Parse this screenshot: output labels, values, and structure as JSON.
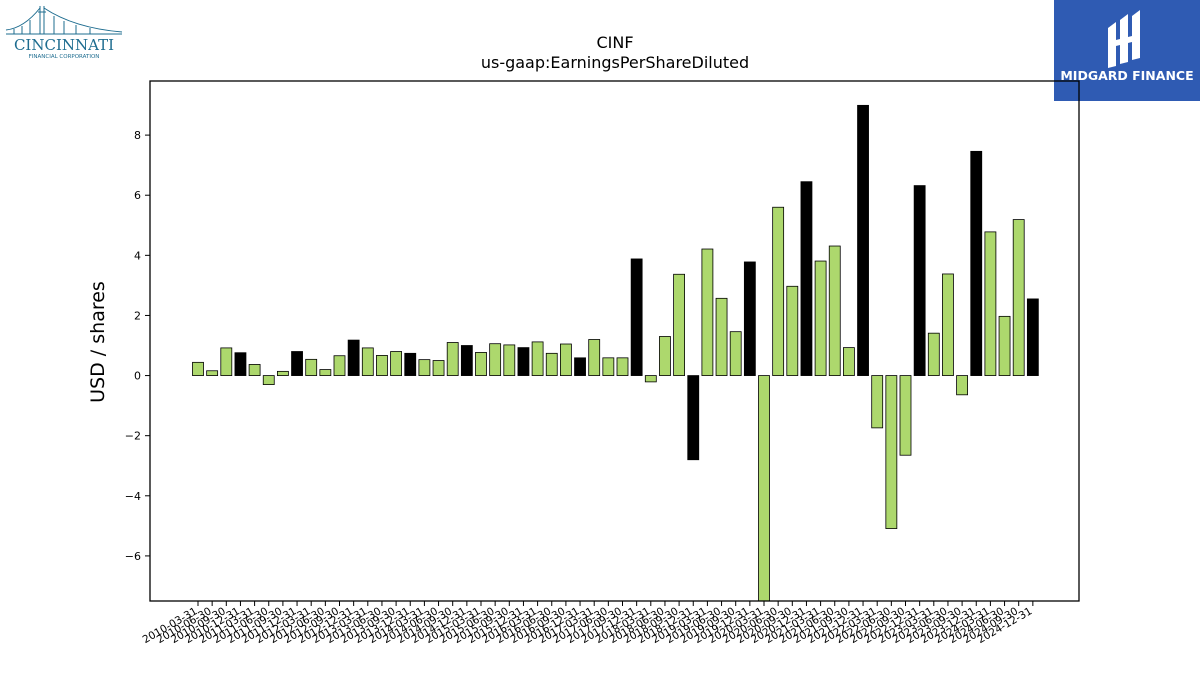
{
  "logos": {
    "left": {
      "text": "CINCINNATI",
      "subtext": "FINANCIAL CORPORATION",
      "color": "#1d6c8f"
    },
    "right": {
      "text": "MIDGARD FINANCE",
      "bg_color": "#2f5bb3"
    }
  },
  "colors": {
    "positive_bar": "#add86d",
    "dec31_bar": "#000000",
    "edge": "#000000"
  },
  "chart_data": {
    "type": "bar",
    "title": "CINF",
    "subtitle": "us-gaap:EarningsPerShareDiluted",
    "xlabel": "",
    "ylabel": "USD / shares",
    "ylim": [
      -7.5,
      9.8
    ],
    "yticks": [
      -6,
      -4,
      -2,
      0,
      2,
      4,
      6,
      8
    ],
    "grid": false,
    "categories": [
      "2010-03-31",
      "2010-06-30",
      "2010-09-30",
      "2010-12-31",
      "2011-03-31",
      "2011-06-30",
      "2011-09-30",
      "2011-12-31",
      "2012-03-31",
      "2012-06-30",
      "2012-09-30",
      "2012-12-31",
      "2013-03-31",
      "2013-06-30",
      "2013-09-30",
      "2013-12-31",
      "2014-03-31",
      "2014-06-30",
      "2014-09-30",
      "2014-12-31",
      "2015-03-31",
      "2015-06-30",
      "2015-09-30",
      "2015-12-31",
      "2016-03-31",
      "2016-06-30",
      "2016-09-30",
      "2016-12-31",
      "2017-03-31",
      "2017-06-30",
      "2017-09-30",
      "2017-12-31",
      "2018-03-31",
      "2018-06-30",
      "2018-09-30",
      "2018-12-31",
      "2019-03-31",
      "2019-06-30",
      "2019-09-30",
      "2019-12-31",
      "2020-03-31",
      "2020-06-30",
      "2020-09-30",
      "2020-12-31",
      "2021-03-31",
      "2021-06-30",
      "2021-09-30",
      "2021-12-31",
      "2022-03-31",
      "2022-06-30",
      "2022-09-30",
      "2022-12-31",
      "2023-03-31",
      "2023-06-30",
      "2023-09-30",
      "2023-12-31",
      "2024-03-31",
      "2024-06-30",
      "2024-09-30",
      "2024-12-31"
    ],
    "values": [
      0.44,
      0.16,
      0.92,
      0.76,
      0.37,
      -0.3,
      0.14,
      0.8,
      0.54,
      0.2,
      0.66,
      1.18,
      0.92,
      0.67,
      0.8,
      0.74,
      0.53,
      0.5,
      1.1,
      1.0,
      0.77,
      1.06,
      1.02,
      0.93,
      1.12,
      0.74,
      1.05,
      0.59,
      1.2,
      0.59,
      0.59,
      3.88,
      -0.21,
      1.3,
      3.37,
      -2.8,
      4.21,
      2.57,
      1.46,
      3.78,
      -7.56,
      5.6,
      2.97,
      6.45,
      3.81,
      4.31,
      0.93,
      8.99,
      -1.74,
      -5.09,
      -2.65,
      6.32,
      1.41,
      3.38,
      -0.64,
      7.46,
      4.78,
      1.97,
      5.19,
      2.55
    ]
  }
}
